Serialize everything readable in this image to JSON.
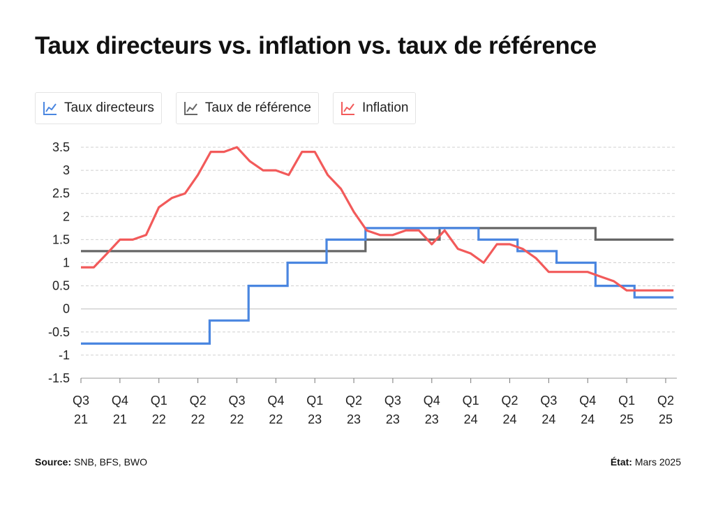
{
  "title": "Taux directeurs vs. inflation vs. taux de référence",
  "legend": [
    {
      "label": "Taux directeurs",
      "color": "#4a86e0"
    },
    {
      "label": "Taux de référence",
      "color": "#666666"
    },
    {
      "label": "Inflation",
      "color": "#f25a5a"
    }
  ],
  "footer": {
    "source_label": "Source:",
    "source_value": "SNB, BFS, BWO",
    "date_label": "État:",
    "date_value": "Mars 2025"
  },
  "chart_data": {
    "type": "line",
    "ylim": [
      -1.5,
      3.5
    ],
    "yticks": [
      "3.5",
      "3",
      "2.5",
      "2",
      "1.5",
      "1",
      "0.5",
      "0",
      "-0.5",
      "-1",
      "-1.5"
    ],
    "xticks": [
      {
        "q": "Q3",
        "y": "21"
      },
      {
        "q": "Q4",
        "y": "21"
      },
      {
        "q": "Q1",
        "y": "22"
      },
      {
        "q": "Q2",
        "y": "22"
      },
      {
        "q": "Q3",
        "y": "22"
      },
      {
        "q": "Q4",
        "y": "22"
      },
      {
        "q": "Q1",
        "y": "23"
      },
      {
        "q": "Q2",
        "y": "23"
      },
      {
        "q": "Q3",
        "y": "23"
      },
      {
        "q": "Q4",
        "y": "23"
      },
      {
        "q": "Q1",
        "y": "24"
      },
      {
        "q": "Q2",
        "y": "24"
      },
      {
        "q": "Q3",
        "y": "24"
      },
      {
        "q": "Q4",
        "y": "24"
      },
      {
        "q": "Q1",
        "y": "25"
      },
      {
        "q": "Q2",
        "y": "25"
      }
    ],
    "grid": "horizontal dashed",
    "legend_position": "top-left",
    "series": [
      {
        "name": "Taux directeurs",
        "color": "#4a86e0",
        "step": true,
        "points": [
          [
            0,
            -0.75
          ],
          [
            3.3,
            -0.75
          ],
          [
            3.3,
            -0.25
          ],
          [
            4.3,
            -0.25
          ],
          [
            4.3,
            0.5
          ],
          [
            5.3,
            0.5
          ],
          [
            5.3,
            1.0
          ],
          [
            6.3,
            1.0
          ],
          [
            6.3,
            1.5
          ],
          [
            7.3,
            1.5
          ],
          [
            7.3,
            1.75
          ],
          [
            10.2,
            1.75
          ],
          [
            10.2,
            1.5
          ],
          [
            11.2,
            1.5
          ],
          [
            11.2,
            1.25
          ],
          [
            12.2,
            1.25
          ],
          [
            12.2,
            1.0
          ],
          [
            13.2,
            1.0
          ],
          [
            13.2,
            0.5
          ],
          [
            14.2,
            0.5
          ],
          [
            14.2,
            0.25
          ],
          [
            15.2,
            0.25
          ]
        ]
      },
      {
        "name": "Taux de référence",
        "color": "#666666",
        "step": true,
        "points": [
          [
            0,
            1.25
          ],
          [
            7.3,
            1.25
          ],
          [
            7.3,
            1.5
          ],
          [
            9.2,
            1.5
          ],
          [
            9.2,
            1.75
          ],
          [
            13.2,
            1.75
          ],
          [
            13.2,
            1.5
          ],
          [
            15.2,
            1.5
          ]
        ]
      },
      {
        "name": "Inflation",
        "color": "#f25a5a",
        "step": false,
        "points": [
          [
            0,
            0.9
          ],
          [
            0.33,
            0.9
          ],
          [
            0.67,
            1.2
          ],
          [
            1.0,
            1.5
          ],
          [
            1.33,
            1.5
          ],
          [
            1.67,
            1.6
          ],
          [
            2.0,
            2.2
          ],
          [
            2.33,
            2.4
          ],
          [
            2.67,
            2.5
          ],
          [
            3.0,
            2.9
          ],
          [
            3.33,
            3.4
          ],
          [
            3.67,
            3.4
          ],
          [
            4.0,
            3.5
          ],
          [
            4.33,
            3.2
          ],
          [
            4.67,
            3.0
          ],
          [
            5.0,
            3.0
          ],
          [
            5.33,
            2.9
          ],
          [
            5.67,
            3.4
          ],
          [
            6.0,
            3.4
          ],
          [
            6.33,
            2.9
          ],
          [
            6.67,
            2.6
          ],
          [
            7.0,
            2.1
          ],
          [
            7.33,
            1.7
          ],
          [
            7.67,
            1.6
          ],
          [
            8.0,
            1.6
          ],
          [
            8.33,
            1.7
          ],
          [
            8.67,
            1.7
          ],
          [
            9.0,
            1.4
          ],
          [
            9.33,
            1.7
          ],
          [
            9.67,
            1.3
          ],
          [
            10.0,
            1.2
          ],
          [
            10.33,
            1.0
          ],
          [
            10.67,
            1.4
          ],
          [
            11.0,
            1.4
          ],
          [
            11.33,
            1.3
          ],
          [
            11.67,
            1.1
          ],
          [
            12.0,
            0.8
          ],
          [
            12.33,
            0.8
          ],
          [
            12.67,
            0.8
          ],
          [
            13.0,
            0.8
          ],
          [
            13.33,
            0.7
          ],
          [
            13.67,
            0.6
          ],
          [
            14.0,
            0.4
          ],
          [
            14.33,
            0.4
          ],
          [
            14.67,
            0.4
          ],
          [
            15.0,
            0.4
          ],
          [
            15.2,
            0.4
          ]
        ]
      }
    ]
  }
}
